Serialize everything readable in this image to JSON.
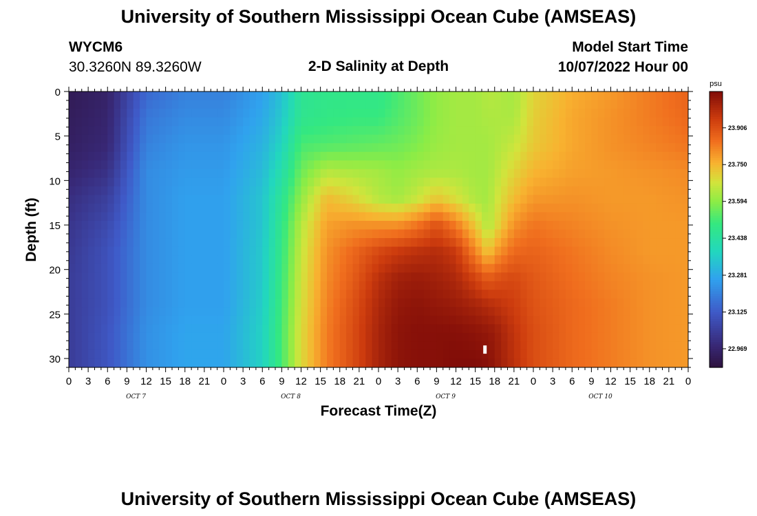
{
  "header": {
    "title": "University of Southern Mississippi Ocean Cube (AMSEAS)",
    "station_id": "WYCM6",
    "coordinates": "30.3260N  89.3260W",
    "plot_title": "2-D Salinity at Depth",
    "model_start_label": "Model Start Time",
    "model_start_value": "10/07/2022 Hour 00"
  },
  "footer": {
    "title": "University of Southern Mississippi Ocean Cube (AMSEAS)"
  },
  "chart_data": {
    "type": "heatmap",
    "title": "2-D Salinity at Depth",
    "xlabel": "Forecast Time(Z)",
    "ylabel": "Depth (ft)",
    "x_range_hours": [
      0,
      96
    ],
    "y_range_ft": [
      0,
      31
    ],
    "x_tick_labels": [
      "0",
      "3",
      "6",
      "9",
      "12",
      "15",
      "18",
      "21",
      "0",
      "3",
      "6",
      "9",
      "12",
      "15",
      "18",
      "21",
      "0",
      "3",
      "6",
      "9",
      "12",
      "15",
      "18",
      "21",
      "0",
      "3",
      "6",
      "9",
      "12",
      "15",
      "18",
      "21",
      "0"
    ],
    "y_ticks": [
      0,
      5,
      10,
      15,
      20,
      25,
      30
    ],
    "day_labels": [
      "OCT 7",
      "OCT 8",
      "OCT 9",
      "OCT 10"
    ],
    "colorbar": {
      "unit": "psu",
      "min": 22.89,
      "max": 24.06,
      "tick_values": [
        22.969,
        23.125,
        23.281,
        23.438,
        23.594,
        23.75,
        23.906
      ],
      "tick_labels": [
        "22.969",
        "23.125",
        "23.281",
        "23.438",
        "23.594",
        "23.750",
        "23.906"
      ]
    },
    "time_hours": [
      0,
      6,
      12,
      18,
      24,
      30,
      33,
      36,
      40,
      44,
      48,
      51,
      54,
      57,
      60,
      63,
      65,
      66,
      69,
      72,
      78,
      84,
      90,
      96
    ],
    "depth_ft": [
      0,
      3,
      6,
      9,
      12,
      15,
      18,
      21,
      24,
      27,
      31
    ],
    "salinity_psu": [
      [
        22.93,
        22.96,
        23.15,
        23.2,
        23.2,
        23.26,
        23.33,
        23.46,
        23.48,
        23.48,
        23.48,
        23.52,
        23.56,
        23.6,
        23.62,
        23.62,
        23.64,
        23.64,
        23.62,
        23.7,
        23.76,
        23.79,
        23.83,
        23.87
      ],
      [
        22.94,
        22.97,
        23.18,
        23.22,
        23.22,
        23.28,
        23.35,
        23.47,
        23.49,
        23.5,
        23.5,
        23.53,
        23.56,
        23.6,
        23.62,
        23.62,
        23.63,
        23.63,
        23.63,
        23.71,
        23.77,
        23.8,
        23.83,
        23.86
      ],
      [
        22.95,
        22.98,
        23.2,
        23.24,
        23.24,
        23.3,
        23.38,
        23.52,
        23.53,
        23.54,
        23.55,
        23.56,
        23.58,
        23.61,
        23.62,
        23.62,
        23.62,
        23.63,
        23.66,
        23.72,
        23.77,
        23.8,
        23.82,
        23.84
      ],
      [
        22.97,
        23.01,
        23.22,
        23.25,
        23.25,
        23.32,
        23.42,
        23.56,
        23.64,
        23.63,
        23.62,
        23.6,
        23.62,
        23.63,
        23.63,
        23.62,
        23.62,
        23.64,
        23.7,
        23.75,
        23.78,
        23.79,
        23.8,
        23.81
      ],
      [
        23.0,
        23.05,
        23.22,
        23.26,
        23.26,
        23.34,
        23.46,
        23.6,
        23.74,
        23.7,
        23.64,
        23.62,
        23.66,
        23.72,
        23.68,
        23.63,
        23.62,
        23.66,
        23.74,
        23.79,
        23.8,
        23.79,
        23.79,
        23.8
      ],
      [
        23.02,
        23.08,
        23.22,
        23.26,
        23.26,
        23.34,
        23.48,
        23.64,
        23.78,
        23.8,
        23.8,
        23.8,
        23.84,
        23.9,
        23.83,
        23.72,
        23.63,
        23.68,
        23.8,
        23.84,
        23.82,
        23.8,
        23.79,
        23.79
      ],
      [
        23.03,
        23.1,
        23.22,
        23.26,
        23.26,
        23.35,
        23.49,
        23.66,
        23.8,
        23.86,
        23.92,
        23.95,
        23.97,
        23.98,
        23.95,
        23.82,
        23.72,
        23.78,
        23.86,
        23.87,
        23.84,
        23.81,
        23.79,
        23.79
      ],
      [
        23.04,
        23.1,
        23.22,
        23.26,
        23.26,
        23.35,
        23.5,
        23.67,
        23.81,
        23.88,
        23.97,
        24.01,
        24.02,
        24.01,
        23.99,
        23.93,
        23.88,
        23.9,
        23.92,
        23.89,
        23.85,
        23.82,
        23.8,
        23.79
      ],
      [
        23.04,
        23.1,
        23.22,
        23.26,
        23.26,
        23.36,
        23.51,
        23.68,
        23.82,
        23.9,
        23.99,
        24.03,
        24.04,
        24.03,
        24.02,
        24.0,
        23.98,
        23.97,
        23.94,
        23.9,
        23.86,
        23.83,
        23.8,
        23.79
      ],
      [
        23.04,
        23.11,
        23.23,
        23.27,
        23.27,
        23.37,
        23.52,
        23.69,
        23.83,
        23.91,
        24.0,
        24.04,
        24.05,
        24.05,
        24.05,
        24.04,
        24.03,
        24.02,
        23.96,
        23.91,
        23.86,
        23.83,
        23.8,
        23.79
      ],
      [
        23.04,
        23.11,
        23.23,
        23.27,
        23.27,
        23.37,
        23.52,
        23.69,
        23.83,
        23.91,
        24.0,
        24.04,
        24.05,
        24.05,
        24.06,
        24.06,
        24.05,
        24.03,
        23.97,
        23.91,
        23.86,
        23.83,
        23.8,
        23.79
      ]
    ],
    "marker": {
      "time_hours": 64.5,
      "depth_ft": 29,
      "color": "#ffffff"
    }
  }
}
